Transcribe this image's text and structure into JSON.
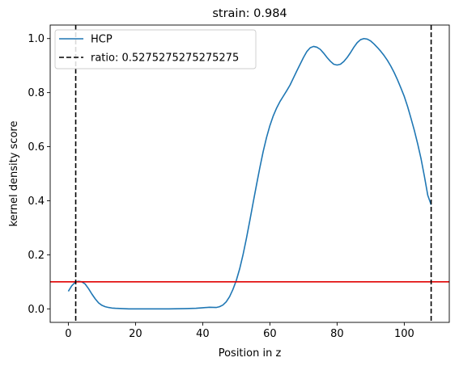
{
  "chart_data": {
    "type": "line",
    "title": "strain: 0.984",
    "xlabel": "Position in z",
    "ylabel": "kernel density score",
    "xlim": [
      -5.4,
      113.4
    ],
    "ylim": [
      -0.05,
      1.05
    ],
    "xticks": [
      0,
      20,
      40,
      60,
      80,
      100
    ],
    "yticks": [
      0.0,
      0.2,
      0.4,
      0.6,
      0.8,
      1.0
    ],
    "xtick_labels": [
      "0",
      "20",
      "40",
      "60",
      "80",
      "100"
    ],
    "ytick_labels": [
      "0.0",
      "0.2",
      "0.4",
      "0.6",
      "0.8",
      "1.0"
    ],
    "grid": false,
    "legend_position": "upper left",
    "series": [
      {
        "name": "HCP",
        "color": "#1f77b4",
        "style": "solid",
        "x": [
          0,
          1,
          2,
          3,
          4,
          5,
          6,
          7,
          8,
          9,
          10,
          11,
          12,
          13,
          14,
          16,
          18,
          20,
          25,
          30,
          35,
          38,
          40,
          42,
          44,
          45,
          46,
          47,
          48,
          49,
          50,
          51,
          52,
          53,
          54,
          55,
          56,
          57,
          58,
          59,
          60,
          61,
          62,
          63,
          64,
          65,
          66,
          67,
          68,
          69,
          70,
          71,
          72,
          73,
          74,
          75,
          76,
          77,
          78,
          79,
          80,
          81,
          82,
          83,
          84,
          85,
          86,
          87,
          88,
          89,
          90,
          91,
          92,
          93,
          94,
          95,
          96,
          97,
          98,
          99,
          100,
          101,
          102,
          103,
          104,
          105,
          106,
          107,
          108
        ],
        "y": [
          0.065,
          0.085,
          0.098,
          0.102,
          0.1,
          0.092,
          0.075,
          0.055,
          0.037,
          0.022,
          0.013,
          0.008,
          0.005,
          0.003,
          0.002,
          0.001,
          0.0,
          0.0,
          0.0,
          0.0,
          0.001,
          0.002,
          0.004,
          0.006,
          0.005,
          0.008,
          0.014,
          0.026,
          0.045,
          0.072,
          0.105,
          0.148,
          0.2,
          0.26,
          0.325,
          0.392,
          0.458,
          0.522,
          0.582,
          0.634,
          0.678,
          0.714,
          0.743,
          0.767,
          0.787,
          0.807,
          0.828,
          0.854,
          0.88,
          0.905,
          0.93,
          0.952,
          0.966,
          0.971,
          0.968,
          0.96,
          0.946,
          0.93,
          0.916,
          0.905,
          0.902,
          0.905,
          0.915,
          0.93,
          0.948,
          0.968,
          0.985,
          0.996,
          1.0,
          0.998,
          0.991,
          0.98,
          0.967,
          0.953,
          0.937,
          0.919,
          0.898,
          0.874,
          0.847,
          0.817,
          0.786,
          0.748,
          0.705,
          0.66,
          0.61,
          0.555,
          0.49,
          0.42,
          0.385
        ]
      }
    ],
    "vlines": [
      {
        "label": "ratio: 0.5275275275275275",
        "x": 2.2,
        "color": "#000000",
        "style": "dashed"
      },
      {
        "label": "",
        "x": 108,
        "color": "#000000",
        "style": "dashed"
      }
    ],
    "hlines": [
      {
        "y": 0.1,
        "color": "#e00000",
        "style": "solid"
      }
    ]
  }
}
